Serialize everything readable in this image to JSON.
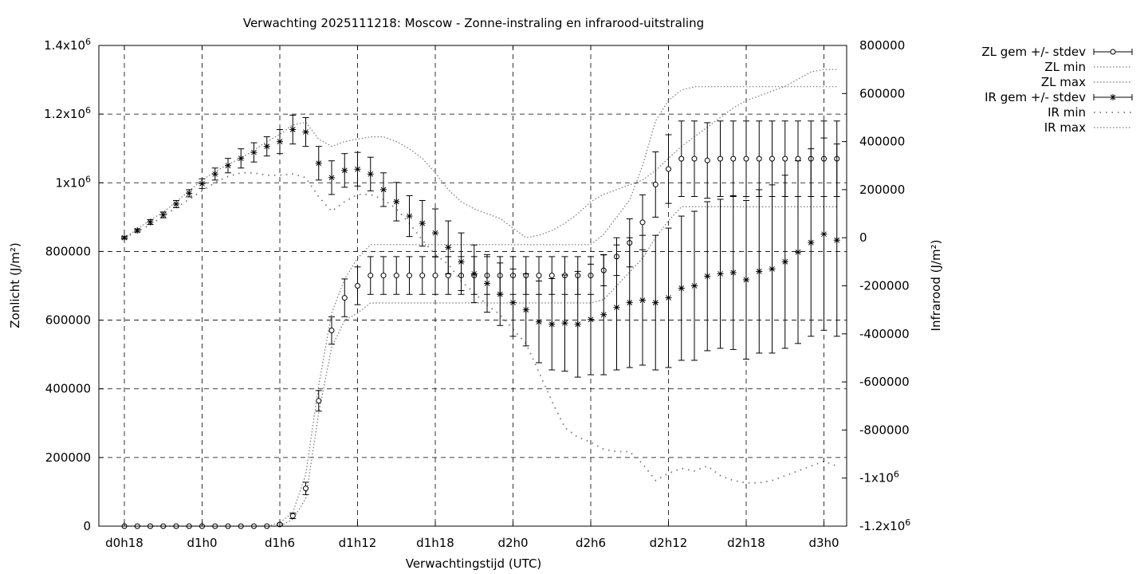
{
  "chart_data": {
    "type": "line",
    "title": "Verwachting 2025111218: Moscow - Zonne-instraling en infrarood-uitstraling",
    "xlabel": "Verwachtingstijd (UTC)",
    "ylabel": "Zonlicht (J/m²)",
    "y2label": "Infrarood (J/m²)",
    "ylim": [
      0,
      1400000
    ],
    "y2lim": [
      -1200000,
      800000
    ],
    "grid": true,
    "legend_position": "top-right (outside plot)",
    "x_hours_start": 18,
    "x_step_hours": 3,
    "x_tick_labels": [
      "d0h18",
      "d1h0",
      "d1h6",
      "d1h12",
      "d1h18",
      "d2h0",
      "d2h6",
      "d2h12",
      "d2h18",
      "d3h0"
    ],
    "y_tick_labels": [
      "0",
      "200000",
      "400000",
      "600000",
      "800000",
      "1x10⁶",
      "1.2x10⁶",
      "1.4x10⁶"
    ],
    "y2_tick_labels": [
      "-1.2x10⁶",
      "-1x10⁶",
      "-800000",
      "-600000",
      "-400000",
      "-200000",
      "0",
      "200000",
      "400000",
      "600000",
      "800000"
    ],
    "series": [
      {
        "name": "ZL gem +/- stdev",
        "axis": "left",
        "style": "circle-errorbar",
        "mean": [
          0,
          0,
          0,
          0,
          0,
          0,
          0,
          0,
          0,
          0,
          0,
          0,
          5000,
          30000,
          110000,
          365000,
          570000,
          665000,
          700000,
          730000,
          730000,
          730000,
          730000,
          730000,
          730000,
          730000,
          730000,
          730000,
          730000,
          730000,
          730000,
          730000,
          730000,
          730000,
          730000,
          730000,
          730000,
          745000,
          785000,
          825000,
          885000,
          995000,
          1040000,
          1070000,
          1070000,
          1065000,
          1070000,
          1070000,
          1070000,
          1070000,
          1070000,
          1070000,
          1070000,
          1070000,
          1070000,
          1070000
        ],
        "stdev": [
          0,
          0,
          0,
          0,
          0,
          0,
          0,
          0,
          0,
          0,
          0,
          0,
          2000,
          8000,
          18000,
          30000,
          40000,
          55000,
          55000,
          55000,
          55000,
          55000,
          55000,
          55000,
          55000,
          55000,
          55000,
          55000,
          55000,
          55000,
          55000,
          55000,
          55000,
          55000,
          55000,
          55000,
          55000,
          45000,
          55000,
          70000,
          80000,
          95000,
          100000,
          110000,
          110000,
          110000,
          110000,
          110000,
          110000,
          110000,
          110000,
          110000,
          110000,
          110000,
          110000,
          110000
        ]
      },
      {
        "name": "ZL min",
        "axis": "left",
        "style": "dotted",
        "values": [
          0,
          0,
          0,
          0,
          0,
          0,
          0,
          0,
          0,
          0,
          0,
          0,
          0,
          20000,
          80000,
          330000,
          520000,
          600000,
          620000,
          650000,
          650000,
          650000,
          650000,
          650000,
          650000,
          650000,
          650000,
          650000,
          650000,
          650000,
          650000,
          650000,
          650000,
          650000,
          650000,
          650000,
          650000,
          660000,
          700000,
          740000,
          780000,
          840000,
          890000,
          930000,
          930000,
          930000,
          930000,
          930000,
          930000,
          930000,
          930000,
          930000,
          930000,
          930000,
          930000,
          930000
        ]
      },
      {
        "name": "ZL max",
        "axis": "left",
        "style": "dotted",
        "values": [
          0,
          0,
          0,
          0,
          0,
          0,
          0,
          0,
          0,
          0,
          0,
          0,
          10000,
          40000,
          150000,
          410000,
          620000,
          720000,
          780000,
          820000,
          820000,
          820000,
          820000,
          820000,
          820000,
          820000,
          820000,
          820000,
          820000,
          820000,
          820000,
          820000,
          820000,
          820000,
          820000,
          820000,
          820000,
          850000,
          900000,
          950000,
          1050000,
          1180000,
          1240000,
          1270000,
          1280000,
          1280000,
          1280000,
          1280000,
          1280000,
          1280000,
          1280000,
          1280000,
          1280000,
          1280000,
          1280000,
          1280000
        ]
      },
      {
        "name": "IR gem +/- stdev",
        "axis": "right",
        "style": "star-errorbar",
        "mean": [
          0,
          30000,
          65000,
          95000,
          140000,
          185000,
          225000,
          265000,
          300000,
          330000,
          355000,
          380000,
          400000,
          450000,
          440000,
          310000,
          250000,
          280000,
          285000,
          265000,
          200000,
          150000,
          90000,
          60000,
          20000,
          -40000,
          -100000,
          -150000,
          -190000,
          -235000,
          -270000,
          -300000,
          -350000,
          -360000,
          -355000,
          -360000,
          -340000,
          -320000,
          -290000,
          -270000,
          -260000,
          -270000,
          -250000,
          -210000,
          -200000,
          -160000,
          -150000,
          -145000,
          -175000,
          -140000,
          -130000,
          -100000,
          -60000,
          -20000,
          15000,
          -10000
        ],
        "stdev": [
          5000,
          6000,
          10000,
          12000,
          15000,
          15000,
          20000,
          25000,
          30000,
          40000,
          40000,
          40000,
          50000,
          60000,
          60000,
          70000,
          70000,
          70000,
          70000,
          70000,
          70000,
          80000,
          85000,
          95000,
          100000,
          110000,
          120000,
          120000,
          120000,
          130000,
          140000,
          150000,
          170000,
          190000,
          200000,
          220000,
          230000,
          250000,
          260000,
          270000,
          270000,
          280000,
          290000,
          300000,
          310000,
          310000,
          310000,
          320000,
          330000,
          340000,
          350000,
          360000,
          380000,
          390000,
          400000,
          400000
        ]
      },
      {
        "name": "IR min",
        "axis": "right",
        "style": "dots",
        "values": [
          0,
          25000,
          55000,
          90000,
          125000,
          160000,
          195000,
          230000,
          255000,
          270000,
          270000,
          260000,
          260000,
          265000,
          250000,
          170000,
          110000,
          150000,
          180000,
          180000,
          160000,
          120000,
          60000,
          -10000,
          -70000,
          -110000,
          -180000,
          -230000,
          -280000,
          -320000,
          -380000,
          -440000,
          -560000,
          -680000,
          -790000,
          -830000,
          -850000,
          -880000,
          -890000,
          -890000,
          -940000,
          -1010000,
          -980000,
          -960000,
          -970000,
          -950000,
          -990000,
          -1010000,
          -1020000,
          -1020000,
          -1010000,
          -990000,
          -970000,
          -950000,
          -930000,
          -950000
        ]
      },
      {
        "name": "IR max",
        "axis": "right",
        "style": "dotted",
        "values": [
          0,
          35000,
          75000,
          105000,
          150000,
          195000,
          240000,
          275000,
          305000,
          330000,
          365000,
          400000,
          430000,
          470000,
          480000,
          410000,
          380000,
          400000,
          410000,
          420000,
          420000,
          400000,
          370000,
          330000,
          270000,
          200000,
          150000,
          120000,
          100000,
          80000,
          40000,
          0,
          10000,
          30000,
          60000,
          100000,
          150000,
          180000,
          200000,
          220000,
          240000,
          280000,
          330000,
          380000,
          420000,
          460000,
          500000,
          540000,
          570000,
          590000,
          610000,
          630000,
          660000,
          690000,
          700000,
          700000
        ]
      }
    ]
  }
}
